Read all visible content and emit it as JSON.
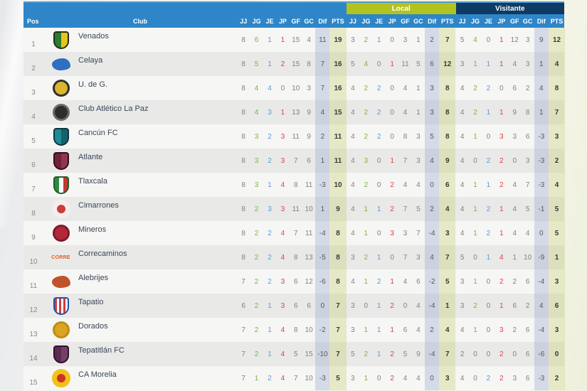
{
  "header": {
    "pos_label": "Pos",
    "club_label": "Club",
    "stat_columns": [
      "JJ",
      "JG",
      "JE",
      "JP",
      "GF",
      "GC",
      "Dif",
      "PTS"
    ],
    "groups": {
      "local": "Local",
      "visitante": "Visitante"
    }
  },
  "colors": {
    "header_blue": "#2e86c8",
    "local_band": "#b2c320",
    "visitante_band": "#0e3a63",
    "row_light": "#f6f6f5",
    "row_dark": "#e9e9e8",
    "dif_column_tint": "#c5cde0",
    "pts_column_tint": "#eaedcb",
    "win_green": "#7cb342",
    "draw_blue": "#5b9bd5",
    "loss_red": "#e2403e"
  },
  "rows": [
    {
      "pos": 1,
      "club": "Venados",
      "logo": {
        "kind": "shield",
        "c1": "#2d7a33",
        "c2": "#e8c51c",
        "c3": "#24301a"
      },
      "general": [
        8,
        6,
        1,
        1,
        15,
        4,
        11,
        19
      ],
      "local": [
        3,
        2,
        1,
        0,
        3,
        1,
        2,
        7
      ],
      "visitante": [
        5,
        4,
        0,
        1,
        12,
        3,
        9,
        12
      ]
    },
    {
      "pos": 2,
      "club": "Celaya",
      "logo": {
        "kind": "mark",
        "c1": "#2d6fc0"
      },
      "general": [
        8,
        5,
        1,
        2,
        15,
        8,
        7,
        16
      ],
      "local": [
        5,
        4,
        0,
        1,
        11,
        5,
        6,
        12
      ],
      "visitante": [
        3,
        1,
        1,
        1,
        4,
        3,
        1,
        4
      ]
    },
    {
      "pos": 3,
      "club": "U. de G.",
      "logo": {
        "kind": "circle",
        "c1": "#d8b62e",
        "c2": "#33302a"
      },
      "general": [
        8,
        4,
        4,
        0,
        10,
        3,
        7,
        16
      ],
      "local": [
        4,
        2,
        2,
        0,
        4,
        1,
        3,
        8
      ],
      "visitante": [
        4,
        2,
        2,
        0,
        6,
        2,
        4,
        8
      ]
    },
    {
      "pos": 4,
      "club": "Club Atlético La Paz",
      "logo": {
        "kind": "circle",
        "c1": "#2f2d2b",
        "c2": "#6b6966"
      },
      "general": [
        8,
        4,
        3,
        1,
        13,
        9,
        4,
        15
      ],
      "local": [
        4,
        2,
        2,
        0,
        4,
        1,
        3,
        8
      ],
      "visitante": [
        4,
        2,
        1,
        1,
        9,
        8,
        1,
        7
      ]
    },
    {
      "pos": 5,
      "club": "Cancún FC",
      "logo": {
        "kind": "shield",
        "c1": "#1f8b97",
        "c2": "#15626c",
        "c3": "#0e3540"
      },
      "general": [
        8,
        3,
        2,
        3,
        11,
        9,
        2,
        11
      ],
      "local": [
        4,
        2,
        2,
        0,
        8,
        3,
        5,
        8
      ],
      "visitante": [
        4,
        1,
        0,
        3,
        3,
        6,
        -3,
        3
      ]
    },
    {
      "pos": 6,
      "club": "Atlante",
      "logo": {
        "kind": "shield",
        "c1": "#722138",
        "c2": "#8f3550",
        "c3": "#2f0d1a"
      },
      "general": [
        8,
        3,
        2,
        3,
        7,
        6,
        1,
        11
      ],
      "local": [
        4,
        3,
        0,
        1,
        7,
        3,
        4,
        9
      ],
      "visitante": [
        4,
        0,
        2,
        2,
        0,
        3,
        -3,
        2
      ]
    },
    {
      "pos": 7,
      "club": "Tlaxcala",
      "logo": {
        "kind": "shield3",
        "c1": "#2f8a3a",
        "c2": "#c23a2e",
        "c3": "#245c2a"
      },
      "general": [
        8,
        3,
        1,
        4,
        8,
        11,
        -3,
        10
      ],
      "local": [
        4,
        2,
        0,
        2,
        4,
        4,
        0,
        6
      ],
      "visitante": [
        4,
        1,
        1,
        2,
        4,
        7,
        -3,
        4
      ]
    },
    {
      "pos": 8,
      "club": "Cimarrones",
      "logo": {
        "kind": "circle-dot",
        "c1": "#f5eeee",
        "c2": "#cf3a3a"
      },
      "general": [
        8,
        2,
        3,
        3,
        11,
        10,
        1,
        9
      ],
      "local": [
        4,
        1,
        1,
        2,
        7,
        5,
        2,
        4
      ],
      "visitante": [
        4,
        1,
        2,
        1,
        4,
        5,
        -1,
        5
      ]
    },
    {
      "pos": 9,
      "club": "Mineros",
      "logo": {
        "kind": "circle",
        "c1": "#b3273a",
        "c2": "#7e1b28"
      },
      "general": [
        8,
        2,
        2,
        4,
        7,
        11,
        -4,
        8
      ],
      "local": [
        4,
        1,
        0,
        3,
        3,
        7,
        -4,
        3
      ],
      "visitante": [
        4,
        1,
        2,
        1,
        4,
        4,
        0,
        5
      ]
    },
    {
      "pos": 10,
      "club": "Correcaminos",
      "logo": {
        "kind": "wordmark",
        "c1": "#e0571f",
        "text": "CORRE"
      },
      "general": [
        8,
        2,
        2,
        4,
        8,
        13,
        -5,
        8
      ],
      "local": [
        3,
        2,
        1,
        0,
        7,
        3,
        4,
        7
      ],
      "visitante": [
        5,
        0,
        1,
        4,
        1,
        10,
        -9,
        1
      ]
    },
    {
      "pos": 11,
      "club": "Alebrijes",
      "logo": {
        "kind": "mark",
        "c1": "#c0532b"
      },
      "general": [
        7,
        2,
        2,
        3,
        6,
        12,
        -6,
        8
      ],
      "local": [
        4,
        1,
        2,
        1,
        4,
        6,
        -2,
        5
      ],
      "visitante": [
        3,
        1,
        0,
        2,
        2,
        6,
        -4,
        3
      ]
    },
    {
      "pos": 12,
      "club": "Tapatio",
      "logo": {
        "kind": "stripes",
        "c1": "#d23b3b",
        "c2": "#ffffff",
        "c3": "#2052a8"
      },
      "general": [
        6,
        2,
        1,
        3,
        6,
        6,
        0,
        7
      ],
      "local": [
        3,
        0,
        1,
        2,
        0,
        4,
        -4,
        1
      ],
      "visitante": [
        3,
        2,
        0,
        1,
        6,
        2,
        4,
        6
      ]
    },
    {
      "pos": 13,
      "club": "Dorados",
      "logo": {
        "kind": "circle",
        "c1": "#d9a523",
        "c2": "#c08d12"
      },
      "general": [
        7,
        2,
        1,
        4,
        8,
        10,
        -2,
        7
      ],
      "local": [
        3,
        1,
        1,
        1,
        6,
        4,
        2,
        4
      ],
      "visitante": [
        4,
        1,
        0,
        3,
        2,
        6,
        -4,
        3
      ]
    },
    {
      "pos": 14,
      "club": "Tepatitlán FC",
      "logo": {
        "kind": "shield",
        "c1": "#5c2a52",
        "c2": "#744068",
        "c3": "#31122b"
      },
      "general": [
        7,
        2,
        1,
        4,
        5,
        15,
        -10,
        7
      ],
      "local": [
        5,
        2,
        1,
        2,
        5,
        9,
        -4,
        7
      ],
      "visitante": [
        2,
        0,
        0,
        2,
        0,
        6,
        -6,
        0
      ]
    },
    {
      "pos": 15,
      "club": "CA Morelia",
      "logo": {
        "kind": "circle-dot",
        "c1": "#f0c21a",
        "c2": "#cc3322"
      },
      "general": [
        7,
        1,
        2,
        4,
        7,
        10,
        -3,
        5
      ],
      "local": [
        3,
        1,
        0,
        2,
        4,
        4,
        0,
        3
      ],
      "visitante": [
        4,
        0,
        2,
        2,
        3,
        6,
        -3,
        2
      ]
    }
  ]
}
